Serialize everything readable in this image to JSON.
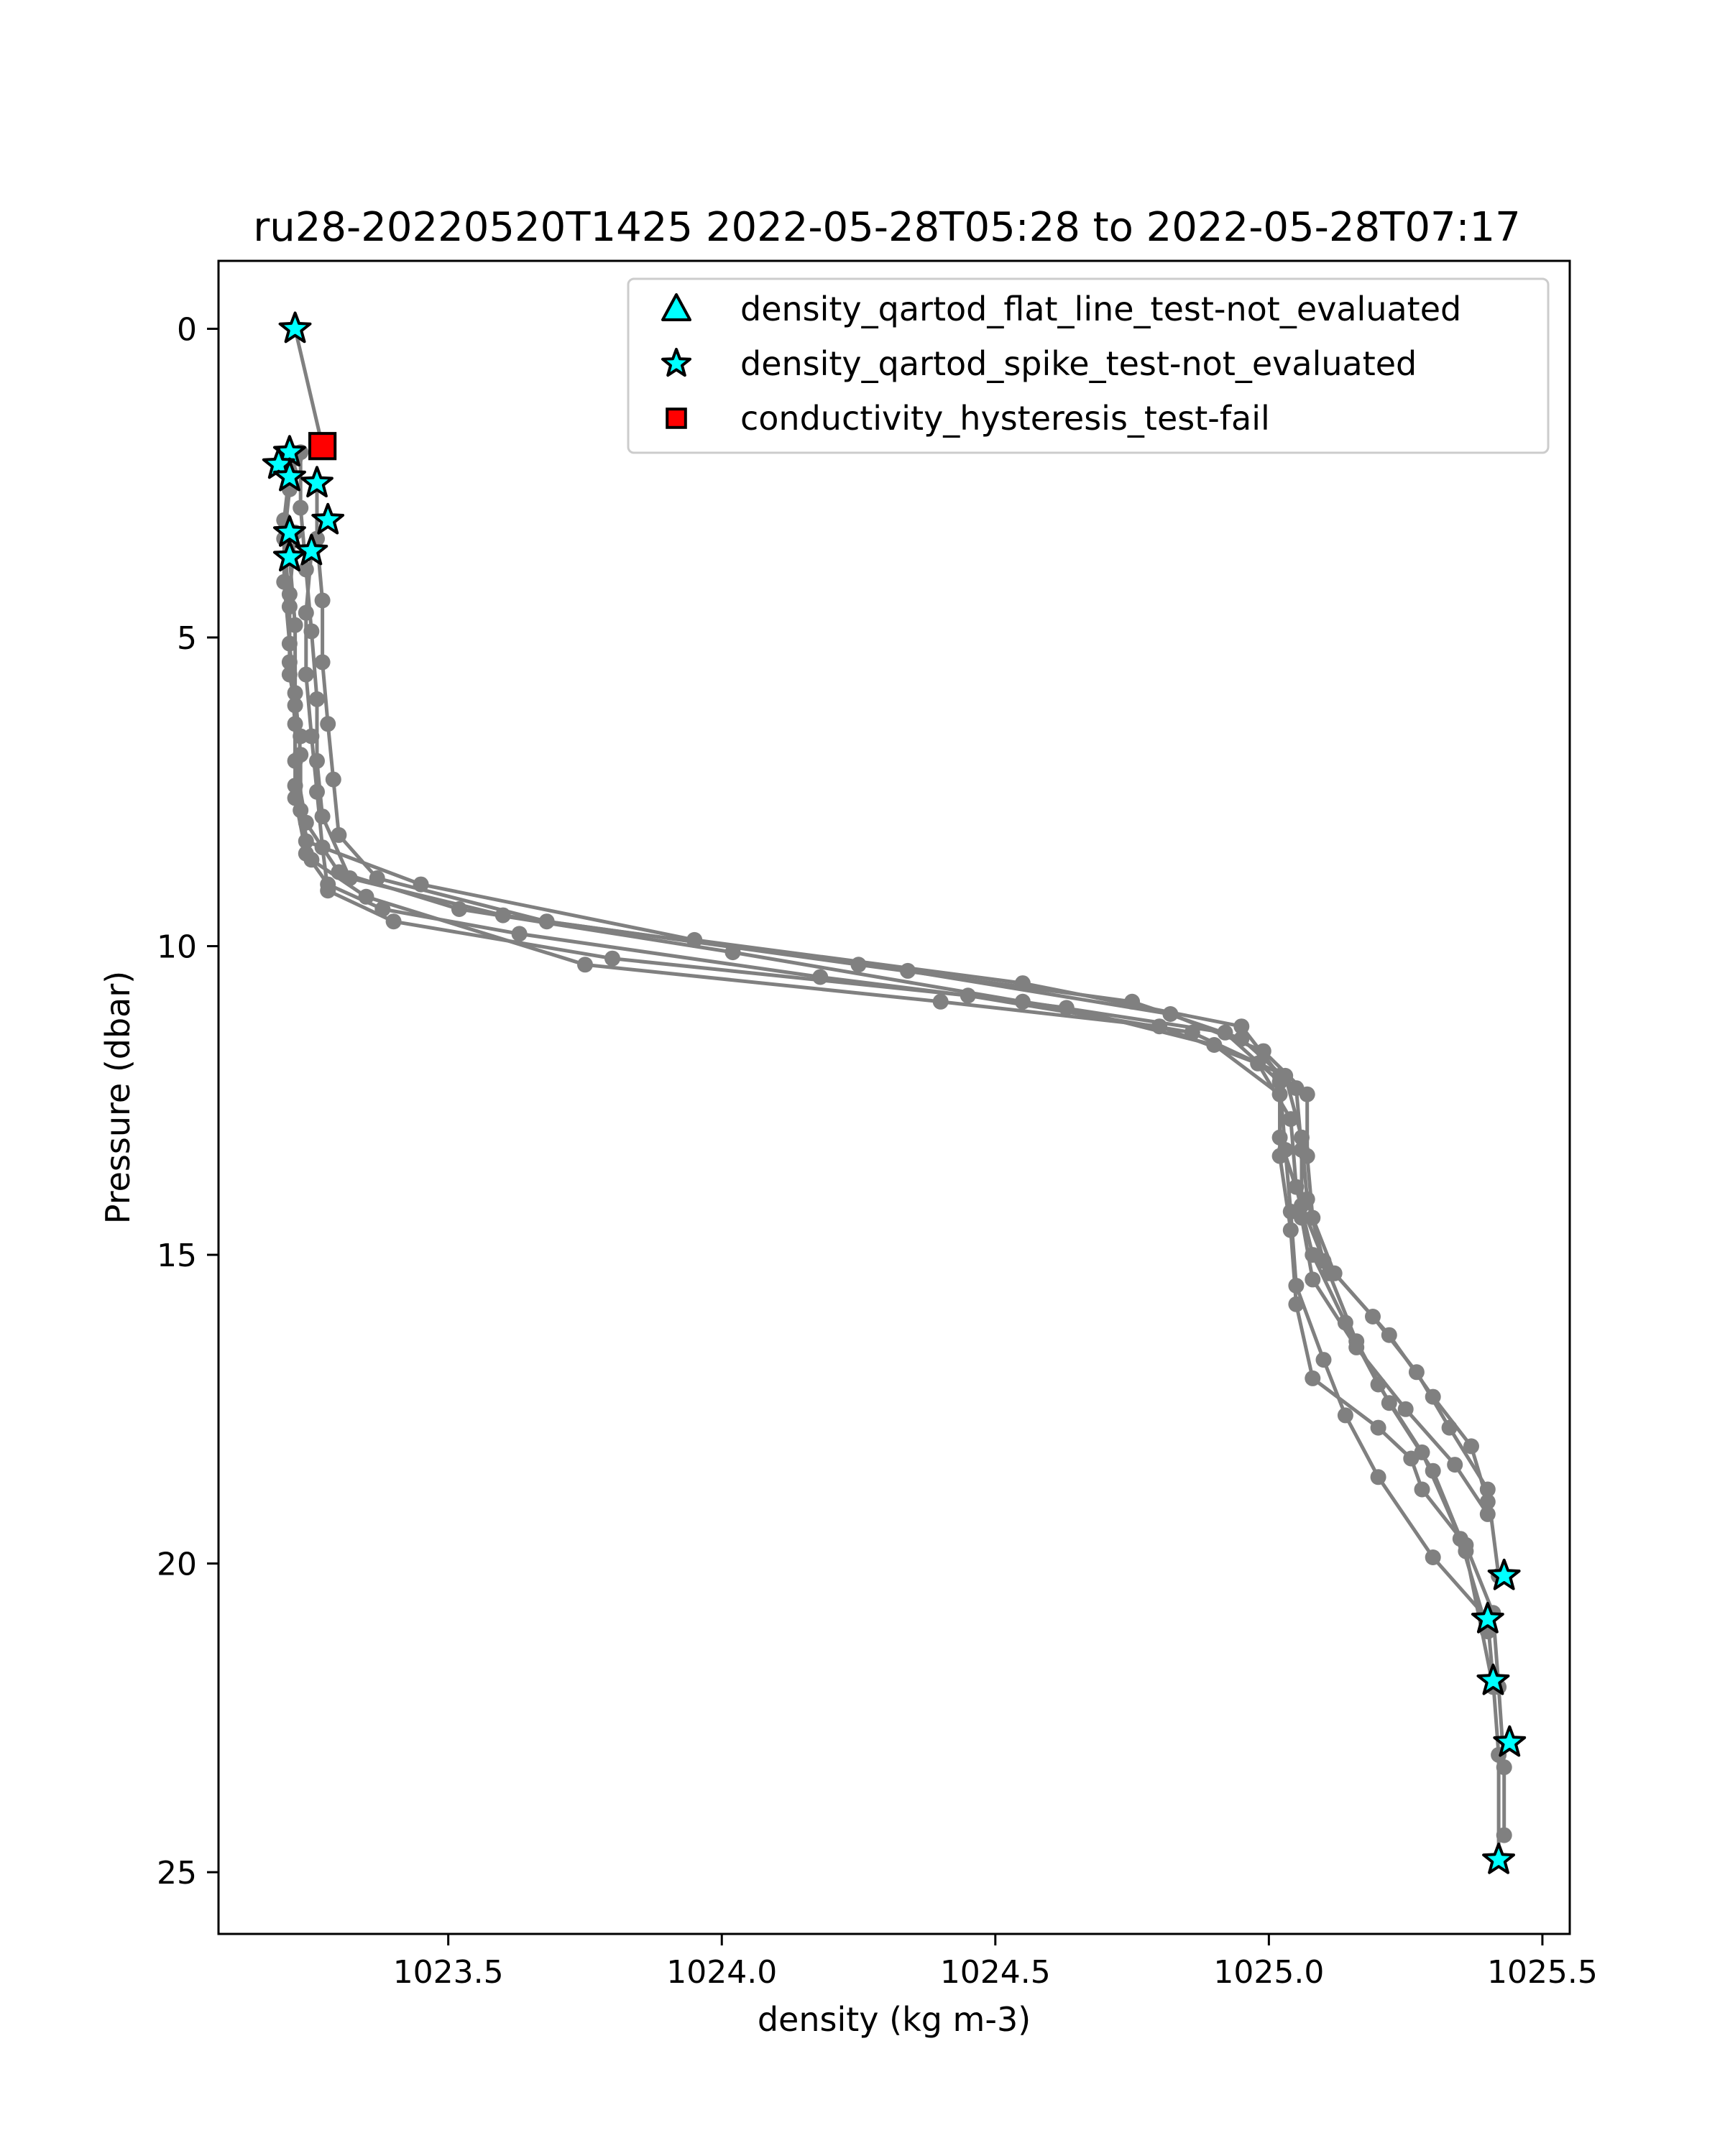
{
  "chart_data": {
    "type": "scatter",
    "title": "ru28-20220520T1425 2022-05-28T05:28 to 2022-05-28T07:17",
    "xlabel": "density (kg m-3)",
    "ylabel": "Pressure (dbar)",
    "xlim": [
      1023.08,
      1025.55
    ],
    "ylim": [
      26.0,
      -1.1
    ],
    "y_inverted": true,
    "xticks": [
      1023.5,
      1024.0,
      1024.5,
      1025.0,
      1025.5
    ],
    "xtick_labels": [
      "1023.5",
      "1024.0",
      "1024.5",
      "1025.0",
      "1025.5"
    ],
    "yticks": [
      0,
      5,
      10,
      15,
      20,
      25
    ],
    "ytick_labels": [
      "0",
      "5",
      "10",
      "15",
      "20",
      "25"
    ],
    "grid": false,
    "legend_position": "top-right",
    "colors": {
      "profile": "#808080",
      "qc_marker_fill": "#00ffff",
      "fail_marker_fill": "#ff0000",
      "marker_edge": "#000000"
    },
    "profile_series": [
      {
        "x": [
          1023.22,
          1023.21,
          1023.2,
          1023.21,
          1023.21,
          1023.23,
          1023.22,
          1023.24,
          1023.28,
          1023.38,
          1023.63,
          1024.18,
          1024.63,
          1024.9,
          1025.02,
          1025.02,
          1025.04,
          1025.05,
          1025.08,
          1025.2,
          1025.26,
          1025.28,
          1025.36,
          1025.41,
          1025.42,
          1025.43,
          1025.43
        ],
        "y": [
          2.1,
          2.6,
          3.4,
          4.5,
          5.6,
          6.6,
          7.6,
          8.5,
          9.0,
          9.4,
          9.8,
          10.5,
          11.0,
          11.6,
          12.4,
          13.4,
          14.6,
          15.8,
          17.0,
          17.8,
          18.3,
          18.8,
          19.7,
          20.8,
          22.0,
          23.3,
          24.4
        ]
      },
      {
        "x": [
          1023.21,
          1023.2,
          1023.2,
          1023.21,
          1023.22,
          1023.22,
          1023.24,
          1023.3,
          1023.52,
          1024.02,
          1024.55,
          1024.92,
          1025.02,
          1025.03,
          1025.04,
          1025.05,
          1025.1,
          1025.14,
          1025.2,
          1025.3,
          1025.4,
          1025.41,
          1025.42,
          1025.42
        ],
        "y": [
          2.3,
          3.1,
          4.1,
          5.1,
          6.1,
          7.0,
          8.0,
          8.8,
          9.4,
          10.1,
          10.9,
          11.4,
          12.2,
          13.3,
          14.3,
          15.5,
          16.7,
          17.6,
          18.6,
          19.9,
          20.9,
          21.9,
          23.1,
          24.8
        ]
      },
      {
        "x": [
          1023.23,
          1023.23,
          1023.24,
          1023.25,
          1023.26,
          1023.26,
          1023.27,
          1023.32,
          1023.6,
          1024.25,
          1024.75,
          1024.95,
          1025.05,
          1025.06,
          1025.06,
          1025.08,
          1025.16,
          1025.25,
          1025.34,
          1025.4
        ],
        "y": [
          2.0,
          2.9,
          3.9,
          4.9,
          6.0,
          7.0,
          7.9,
          8.9,
          9.5,
          10.3,
          10.9,
          11.5,
          12.3,
          13.3,
          14.4,
          15.4,
          16.5,
          17.5,
          18.4,
          19.2
        ]
      },
      {
        "x": [
          1023.26,
          1023.26,
          1023.27,
          1023.27,
          1023.28,
          1023.29,
          1023.3,
          1023.37,
          1023.68,
          1024.34,
          1024.82,
          1024.99,
          1025.07,
          1025.07,
          1025.08,
          1025.12,
          1025.22,
          1025.3,
          1025.37,
          1025.4
        ],
        "y": [
          2.5,
          3.4,
          4.4,
          5.4,
          6.4,
          7.3,
          8.2,
          8.9,
          9.6,
          10.4,
          11.1,
          11.7,
          12.4,
          13.4,
          14.4,
          15.3,
          16.3,
          17.3,
          18.1,
          19.0
        ]
      },
      {
        "x": [
          1023.25,
          1023.24,
          1023.24,
          1023.25,
          1023.26,
          1023.27,
          1023.28,
          1023.4,
          1023.8,
          1024.45,
          1024.86,
          1025.03,
          1025.06,
          1025.07,
          1025.1,
          1025.19,
          1025.27,
          1025.33,
          1025.4,
          1025.42
        ],
        "y": [
          3.6,
          4.6,
          5.6,
          6.6,
          7.5,
          8.4,
          9.1,
          9.6,
          10.2,
          10.8,
          11.4,
          12.1,
          13.1,
          14.1,
          15.1,
          16.0,
          16.9,
          17.8,
          18.8,
          20.2
        ]
      },
      {
        "x": [
          1023.21,
          1023.22,
          1023.22,
          1023.23,
          1023.23,
          1023.25,
          1023.35,
          1023.75,
          1024.4,
          1024.8,
          1024.98,
          1025.04,
          1025.05,
          1025.08,
          1025.14,
          1025.2,
          1025.28,
          1025.35,
          1025.4
        ],
        "y": [
          3.7,
          4.8,
          5.9,
          6.9,
          7.8,
          8.6,
          9.2,
          10.3,
          10.9,
          11.3,
          11.9,
          12.8,
          13.9,
          15.0,
          16.1,
          17.1,
          18.2,
          19.6,
          21.1
        ]
      },
      {
        "x": [
          1023.22,
          1023.21,
          1023.21,
          1023.22,
          1023.22,
          1023.24,
          1023.45,
          1023.95,
          1024.55,
          1024.95,
          1025.02,
          1025.02,
          1025.06,
          1025.11,
          1025.16,
          1025.22,
          1025.3,
          1025.36,
          1025.41
        ],
        "y": [
          3.3,
          4.3,
          5.4,
          6.4,
          7.4,
          8.3,
          9.0,
          9.9,
          10.6,
          11.3,
          12.1,
          13.1,
          14.2,
          15.3,
          16.4,
          17.4,
          18.5,
          19.8,
          22.0
        ]
      }
    ],
    "series": [
      {
        "name": "density_qartod_flat_line_test-not_evaluated",
        "marker": "triangle",
        "points": []
      },
      {
        "name": "density_qartod_spike_test-not_evaluated",
        "marker": "star",
        "points": [
          {
            "x": 1023.22,
            "y": 0.0
          },
          {
            "x": 1023.21,
            "y": 2.0
          },
          {
            "x": 1023.19,
            "y": 2.2
          },
          {
            "x": 1023.21,
            "y": 2.4
          },
          {
            "x": 1023.26,
            "y": 2.5
          },
          {
            "x": 1023.28,
            "y": 3.1
          },
          {
            "x": 1023.21,
            "y": 3.3
          },
          {
            "x": 1023.25,
            "y": 3.6
          },
          {
            "x": 1023.21,
            "y": 3.7
          },
          {
            "x": 1025.43,
            "y": 20.2
          },
          {
            "x": 1025.4,
            "y": 20.9
          },
          {
            "x": 1025.41,
            "y": 21.9
          },
          {
            "x": 1025.44,
            "y": 22.9
          },
          {
            "x": 1025.42,
            "y": 24.8
          }
        ]
      },
      {
        "name": "conductivity_hysteresis_test-fail",
        "marker": "square",
        "points": [
          {
            "x": 1023.27,
            "y": 1.9
          }
        ]
      }
    ]
  }
}
